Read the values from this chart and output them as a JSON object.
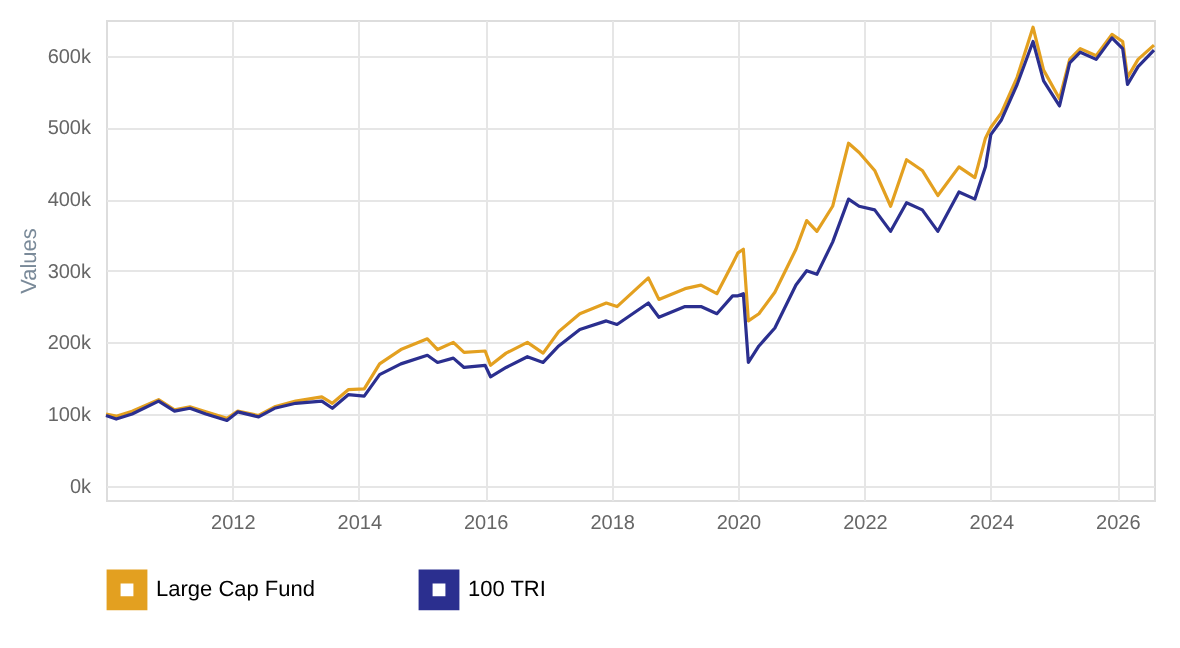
{
  "chart_data": {
    "type": "line",
    "ylabel": "Values",
    "x": [
      "2010-01",
      "2010-03",
      "2010-06",
      "2010-11",
      "2011-02",
      "2011-05",
      "2011-08",
      "2011-12",
      "2012-02",
      "2012-06",
      "2012-09",
      "2013-01",
      "2013-06",
      "2013-08",
      "2013-11",
      "2014-02",
      "2014-05",
      "2014-09",
      "2015-02",
      "2015-04",
      "2015-07",
      "2015-09",
      "2016-01",
      "2016-02",
      "2016-05",
      "2016-09",
      "2016-12",
      "2017-03",
      "2017-07",
      "2017-12",
      "2018-02",
      "2018-08",
      "2018-10",
      "2019-03",
      "2019-06",
      "2019-09",
      "2019-12",
      "2020-01",
      "2020-02",
      "2020-03",
      "2020-05",
      "2020-08",
      "2020-12",
      "2021-02",
      "2021-04",
      "2021-07",
      "2021-10",
      "2021-12",
      "2022-03",
      "2022-06",
      "2022-09",
      "2022-12",
      "2023-03",
      "2023-07",
      "2023-10",
      "2023-12",
      "2024-01",
      "2024-03",
      "2024-06",
      "2024-09",
      "2024-11",
      "2025-02",
      "2025-04",
      "2025-06",
      "2025-09",
      "2025-12",
      "2026-02",
      "2026-03",
      "2026-05",
      "2026-08"
    ],
    "series": [
      {
        "name": "Large Cap Fund",
        "color": "#e3a020",
        "values": [
          100000,
          97000,
          104000,
          120000,
          106000,
          110000,
          103000,
          94000,
          104000,
          98000,
          110000,
          118000,
          124000,
          115000,
          134000,
          135000,
          170000,
          190000,
          205000,
          190000,
          200000,
          186000,
          188000,
          168000,
          185000,
          200000,
          185000,
          215000,
          240000,
          255000,
          250000,
          290000,
          260000,
          275000,
          280000,
          268000,
          310000,
          325000,
          330000,
          230000,
          240000,
          270000,
          330000,
          370000,
          355000,
          390000,
          478000,
          465000,
          440000,
          390000,
          455000,
          440000,
          405000,
          445000,
          430000,
          485000,
          500000,
          520000,
          570000,
          640000,
          580000,
          540000,
          595000,
          610000,
          600000,
          630000,
          620000,
          570000,
          595000,
          615000
        ]
      },
      {
        "name": "100 TRI",
        "color": "#2b2f8f",
        "values": [
          98000,
          93000,
          100000,
          118000,
          104000,
          108000,
          100000,
          91000,
          103000,
          96000,
          108000,
          115000,
          118000,
          108000,
          127000,
          125000,
          155000,
          170000,
          182000,
          172000,
          178000,
          165000,
          168000,
          152000,
          165000,
          180000,
          172000,
          195000,
          218000,
          230000,
          225000,
          255000,
          235000,
          250000,
          250000,
          240000,
          265000,
          265000,
          268000,
          172000,
          195000,
          220000,
          280000,
          300000,
          295000,
          340000,
          400000,
          390000,
          385000,
          355000,
          395000,
          385000,
          355000,
          410000,
          400000,
          445000,
          490000,
          510000,
          560000,
          620000,
          565000,
          530000,
          590000,
          605000,
          595000,
          625000,
          610000,
          560000,
          585000,
          608000
        ]
      }
    ],
    "xlim": [
      "2010-01",
      "2026-08"
    ],
    "xticks": [
      {
        "value": "2012",
        "label": "2012"
      },
      {
        "value": "2014",
        "label": "2014"
      },
      {
        "value": "2016",
        "label": "2016"
      },
      {
        "value": "2018",
        "label": "2018"
      },
      {
        "value": "2020",
        "label": "2020"
      },
      {
        "value": "2022",
        "label": "2022"
      },
      {
        "value": "2024",
        "label": "2024"
      },
      {
        "value": "2026",
        "label": "2026"
      }
    ],
    "ylim": [
      -20000,
      650000
    ],
    "yticks": [
      {
        "value": 0,
        "label": "0k"
      },
      {
        "value": 100000,
        "label": "100k"
      },
      {
        "value": 200000,
        "label": "200k"
      },
      {
        "value": 300000,
        "label": "300k"
      },
      {
        "value": 400000,
        "label": "400k"
      },
      {
        "value": 500000,
        "label": "500k"
      },
      {
        "value": 600000,
        "label": "600k"
      }
    ],
    "grid": true,
    "legend": "bottom",
    "marker": "none",
    "line_style": "solid"
  }
}
